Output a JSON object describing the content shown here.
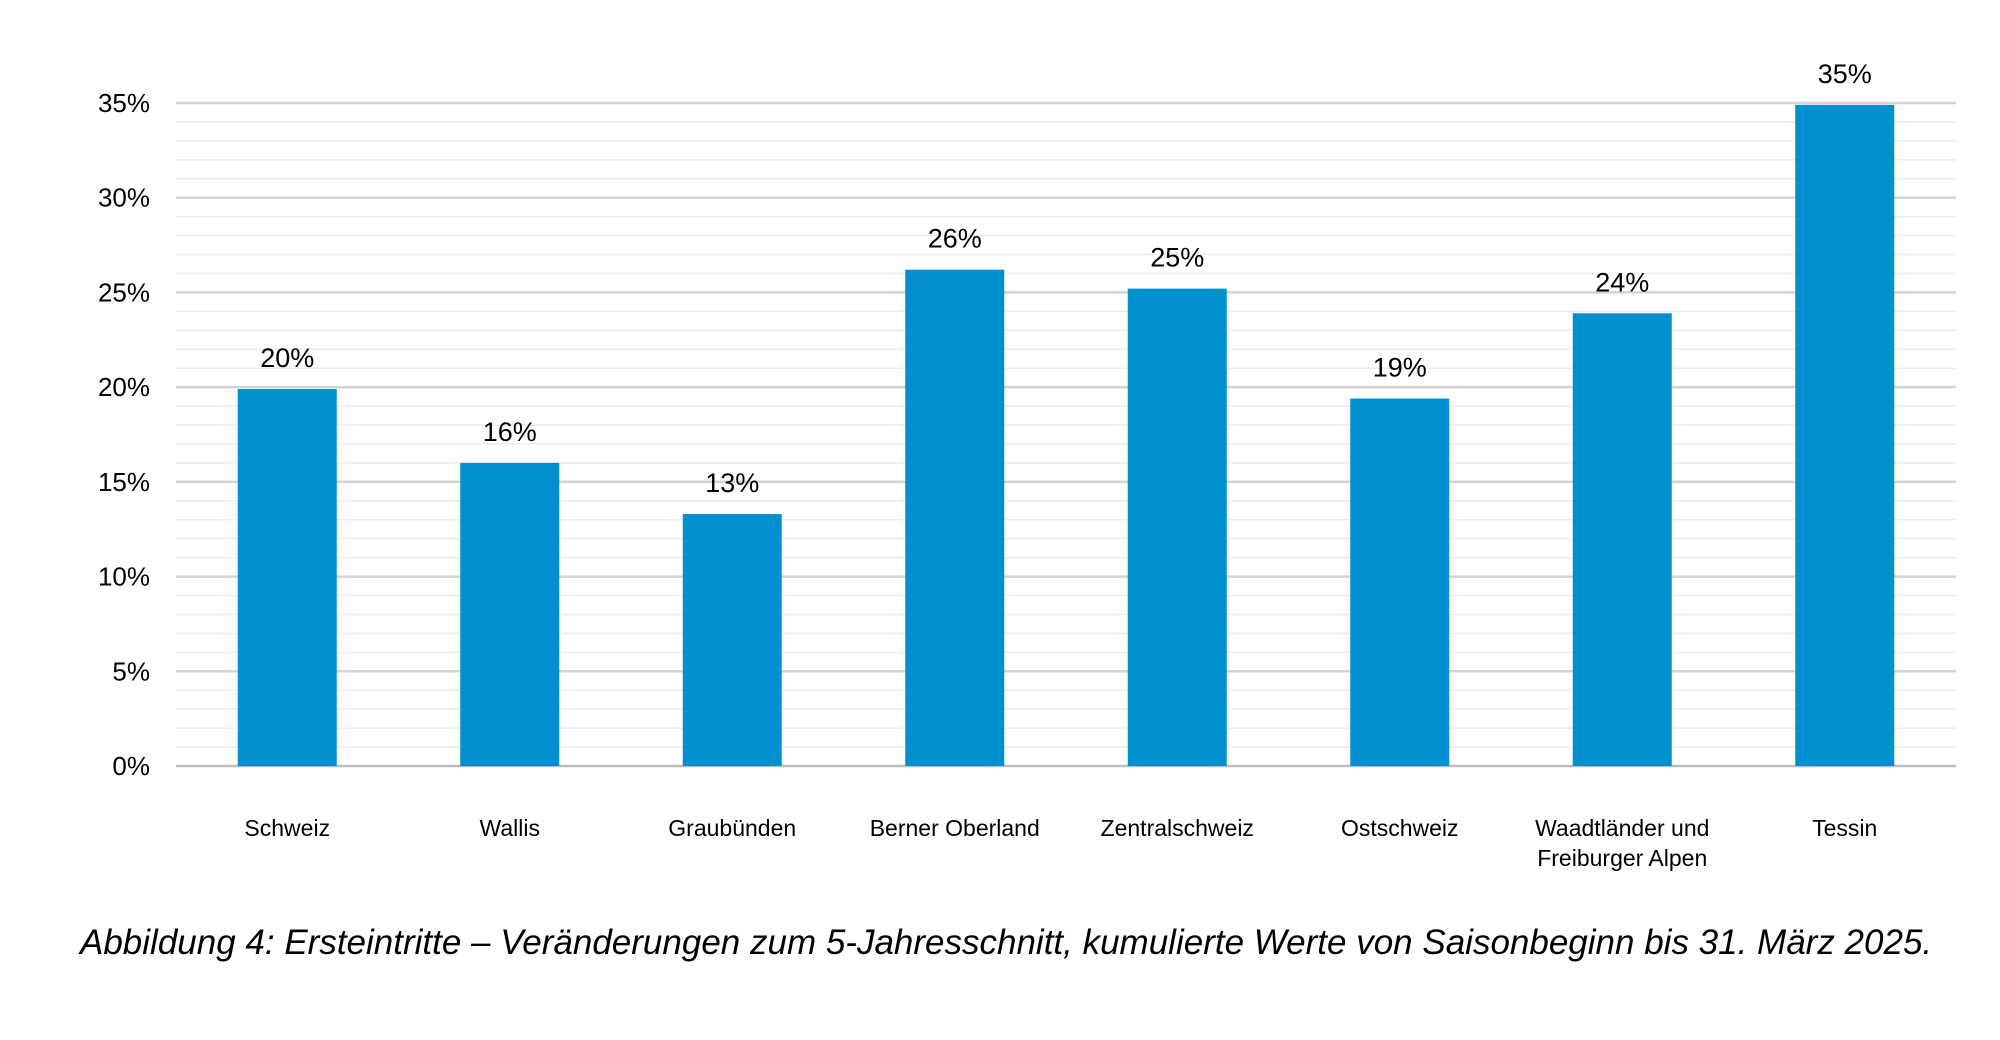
{
  "chart_data": {
    "type": "bar",
    "categories": [
      "Schweiz",
      "Wallis",
      "Graubünden",
      "Berner Oberland",
      "Zentralschweiz",
      "Ostschweiz",
      [
        "Waadtländer und",
        "Freiburger Alpen"
      ],
      "Tessin"
    ],
    "values": [
      19.9,
      16.0,
      13.3,
      26.2,
      25.2,
      19.4,
      23.9,
      34.9
    ],
    "data_labels": [
      "20%",
      "16%",
      "13%",
      "26%",
      "25%",
      "19%",
      "24%",
      "35%"
    ],
    "ylim": [
      0,
      35
    ],
    "yticks": [
      0,
      5,
      10,
      15,
      20,
      25,
      30,
      35
    ],
    "ytick_labels": [
      "0%",
      "5%",
      "10%",
      "15%",
      "20%",
      "25%",
      "30%",
      "35%"
    ],
    "minor_gridlines": true,
    "bar_color": "#0090D0",
    "title": "",
    "xlabel": "",
    "ylabel": ""
  },
  "caption": "Abbildung 4: Ersteintritte – Veränderungen zum 5-Jahresschnitt, kumulierte Werte von Saisonbeginn bis 31. März 2025."
}
